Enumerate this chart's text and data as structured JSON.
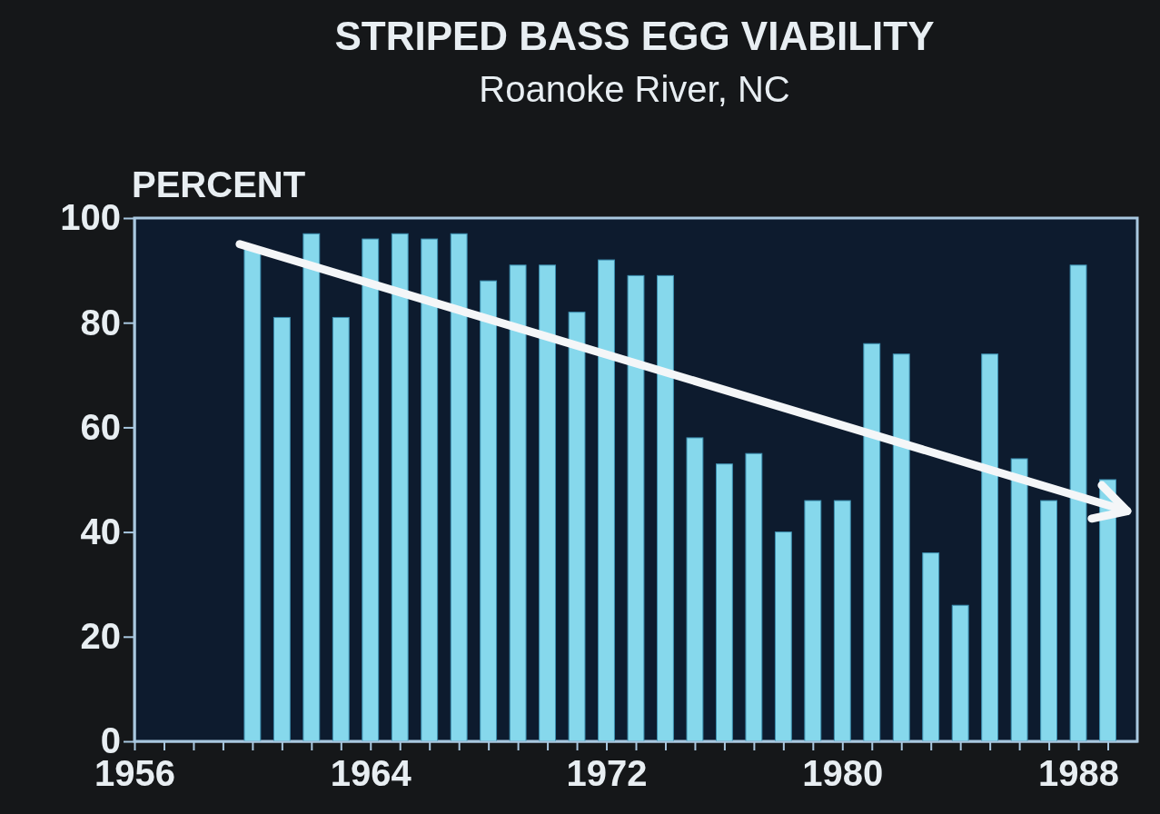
{
  "chart_data": {
    "type": "bar",
    "title": "STRIPED BASS EGG VIABILITY",
    "subtitle": "Roanoke River, NC",
    "ylabel": "PERCENT",
    "x": [
      1960,
      1961,
      1962,
      1963,
      1964,
      1965,
      1966,
      1967,
      1968,
      1969,
      1970,
      1971,
      1972,
      1973,
      1974,
      1975,
      1976,
      1977,
      1978,
      1979,
      1980,
      1981,
      1982,
      1983,
      1984,
      1985,
      1986,
      1987,
      1988,
      1989
    ],
    "values": [
      94,
      81,
      97,
      81,
      96,
      97,
      96,
      97,
      88,
      91,
      91,
      82,
      92,
      89,
      89,
      58,
      53,
      55,
      40,
      46,
      46,
      76,
      74,
      36,
      26,
      74,
      54,
      46,
      91,
      50
    ],
    "color": "#86d8ec",
    "xlim": [
      1956,
      1990
    ],
    "xticks": [
      1956,
      {
        "value": 1957,
        "label": null
      },
      {
        "value": 1958,
        "label": null
      },
      {
        "value": 1959,
        "label": null
      },
      {
        "value": 1960,
        "label": null
      },
      {
        "value": 1961,
        "label": null
      },
      {
        "value": 1962,
        "label": null
      },
      {
        "value": 1963,
        "label": null
      },
      1964,
      {
        "value": 1965,
        "label": null
      },
      {
        "value": 1966,
        "label": null
      },
      {
        "value": 1967,
        "label": null
      },
      {
        "value": 1968,
        "label": null
      },
      {
        "value": 1969,
        "label": null
      },
      {
        "value": 1970,
        "label": null
      },
      {
        "value": 1971,
        "label": null
      },
      1972,
      {
        "value": 1973,
        "label": null
      },
      {
        "value": 1974,
        "label": null
      },
      {
        "value": 1975,
        "label": null
      },
      {
        "value": 1976,
        "label": null
      },
      {
        "value": 1977,
        "label": null
      },
      {
        "value": 1978,
        "label": null
      },
      {
        "value": 1979,
        "label": null
      },
      1980,
      {
        "value": 1981,
        "label": null
      },
      {
        "value": 1982,
        "label": null
      },
      {
        "value": 1983,
        "label": null
      },
      {
        "value": 1984,
        "label": null
      },
      {
        "value": 1985,
        "label": null
      },
      {
        "value": 1986,
        "label": null
      },
      {
        "value": 1987,
        "label": null
      },
      1988,
      {
        "value": 1989,
        "label": null
      }
    ],
    "ylim": [
      0,
      100
    ],
    "yticks": [
      0,
      20,
      40,
      60,
      80,
      100
    ]
  }
}
